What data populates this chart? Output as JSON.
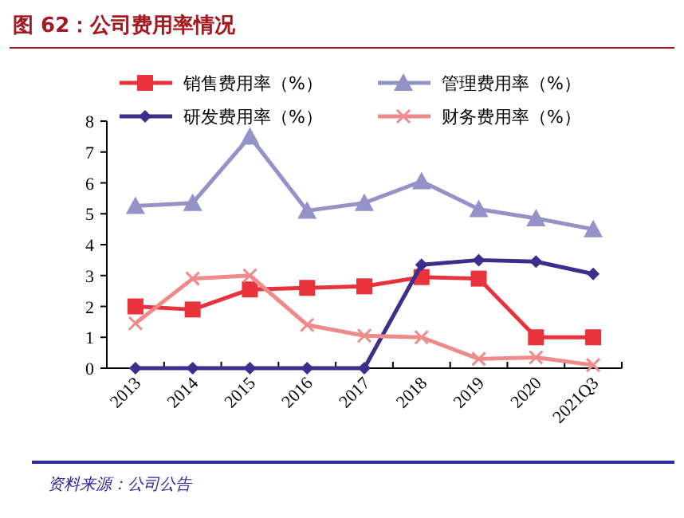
{
  "chart_data": {
    "type": "line",
    "title": "图 62：公司费用率情况",
    "categories": [
      "2013",
      "2014",
      "2015",
      "2016",
      "2017",
      "2018",
      "2019",
      "2020",
      "2021Q3"
    ],
    "series": [
      {
        "name": "销售费用率（%）",
        "color": "#e8323c",
        "marker": "square",
        "values": [
          2.0,
          1.9,
          2.55,
          2.6,
          2.65,
          2.95,
          2.9,
          1.0,
          1.0
        ]
      },
      {
        "name": "管理费用率（%）",
        "color": "#9393c8",
        "marker": "triangle",
        "values": [
          5.25,
          5.35,
          7.5,
          5.1,
          5.35,
          6.05,
          5.15,
          4.85,
          4.5
        ]
      },
      {
        "name": "研发费用率（%）",
        "color": "#3a2f8c",
        "marker": "diamond",
        "values": [
          0,
          0,
          0,
          0,
          0,
          3.35,
          3.5,
          3.45,
          3.05
        ]
      },
      {
        "name": "财务费用率（%）",
        "color": "#ee8a8a",
        "marker": "cross",
        "values": [
          1.45,
          2.9,
          3.0,
          1.4,
          1.05,
          1.0,
          0.3,
          0.35,
          0.1
        ]
      }
    ],
    "ylim": [
      0,
      8
    ],
    "yticks": [
      0,
      1,
      2,
      3,
      4,
      5,
      6,
      7,
      8
    ],
    "grid": false,
    "legend": "top",
    "line_style": "solid",
    "annotations": [
      "资料来源：公司公告"
    ]
  }
}
